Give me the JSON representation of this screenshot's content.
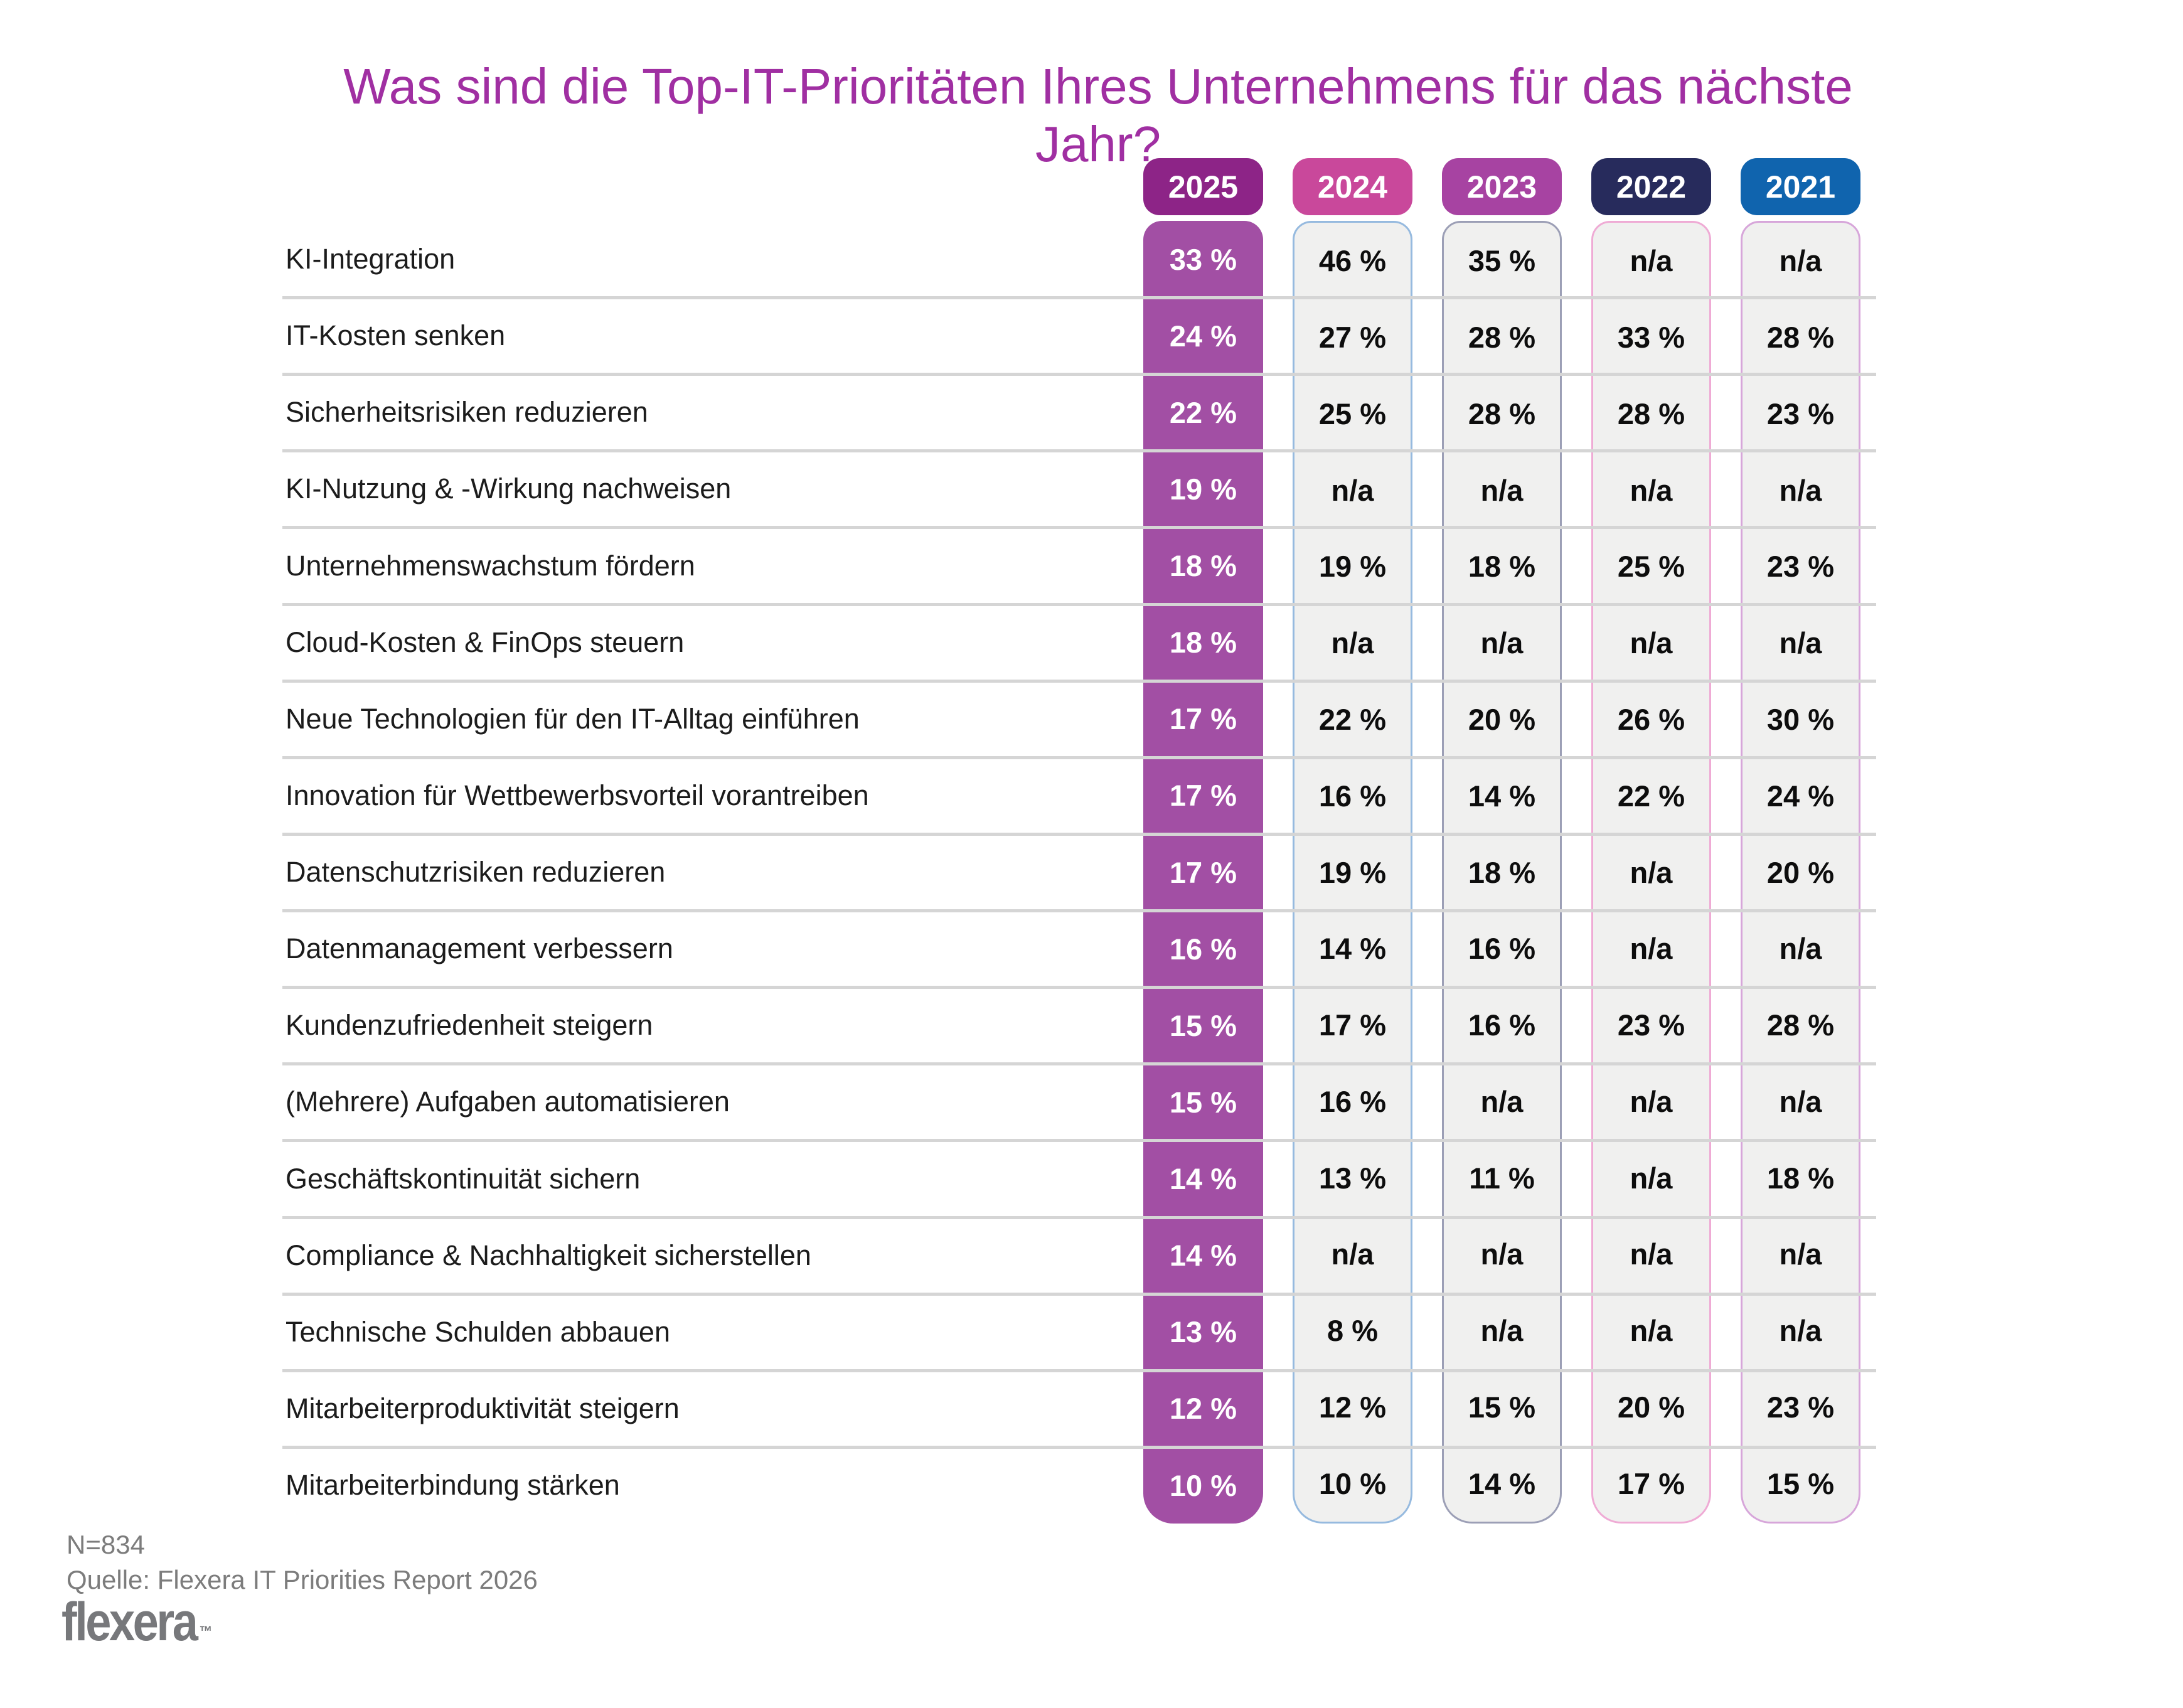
{
  "title": "Was sind die Top-IT-Prioritäten Ihres Unternehmens für das nächste Jahr?",
  "palette": {
    "title_color": "#A02FA2",
    "separator": "#D5D5D5",
    "cell_bg": "#F0F0EF",
    "label_text": "#1C1C1C",
    "value_text": "#0D0D0D",
    "primary_value_text": "#FFFFFF",
    "footer_text": "#7C7C7C",
    "logo_color": "#77787B"
  },
  "years": [
    {
      "label": "2025",
      "header_bg": "#8D2487",
      "body_bg": "#A24FA4",
      "highlight": true
    },
    {
      "label": "2024",
      "header_bg": "#C9489B",
      "border": "#96BADF",
      "highlight": false
    },
    {
      "label": "2023",
      "header_bg": "#A743A2",
      "border": "#9C9FB6",
      "highlight": false
    },
    {
      "label": "2022",
      "header_bg": "#272B5C",
      "border": "#EFABD5",
      "highlight": false
    },
    {
      "label": "2021",
      "header_bg": "#1064AE",
      "border": "#D7A6DA",
      "highlight": false
    }
  ],
  "rows": [
    {
      "label": "KI-Integration",
      "values": [
        "33 %",
        "46 %",
        "35 %",
        "n/a",
        "n/a"
      ]
    },
    {
      "label": "IT-Kosten senken",
      "values": [
        "24 %",
        "27 %",
        "28 %",
        "33 %",
        "28 %"
      ]
    },
    {
      "label": "Sicherheitsrisiken reduzieren",
      "values": [
        "22 %",
        "25 %",
        "28 %",
        "28 %",
        "23 %"
      ]
    },
    {
      "label": "KI-Nutzung & -Wirkung nachweisen",
      "values": [
        "19 %",
        "n/a",
        "n/a",
        "n/a",
        "n/a"
      ]
    },
    {
      "label": "Unternehmenswachstum fördern",
      "values": [
        "18 %",
        "19 %",
        "18 %",
        "25 %",
        "23 %"
      ]
    },
    {
      "label": "Cloud-Kosten & FinOps steuern",
      "values": [
        "18 %",
        "n/a",
        "n/a",
        "n/a",
        "n/a"
      ]
    },
    {
      "label": "Neue Technologien für den IT-Alltag einführen",
      "values": [
        "17 %",
        "22 %",
        "20 %",
        "26 %",
        "30 %"
      ]
    },
    {
      "label": "Innovation für Wettbewerbsvorteil vorantreiben",
      "values": [
        "17 %",
        "16 %",
        "14 %",
        "22 %",
        "24 %"
      ]
    },
    {
      "label": "Datenschutzrisiken reduzieren",
      "values": [
        "17 %",
        "19 %",
        "18 %",
        "n/a",
        "20 %"
      ]
    },
    {
      "label": "Datenmanagement verbessern",
      "values": [
        "16 %",
        "14 %",
        "16 %",
        "n/a",
        "n/a"
      ]
    },
    {
      "label": "Kundenzufriedenheit steigern",
      "values": [
        "15 %",
        "17 %",
        "16 %",
        "23 %",
        "28 %"
      ]
    },
    {
      "label": "(Mehrere) Aufgaben automatisieren",
      "values": [
        "15 %",
        "16 %",
        "n/a",
        "n/a",
        "n/a"
      ]
    },
    {
      "label": "Geschäftskontinuität sichern",
      "values": [
        "14 %",
        "13 %",
        "11 %",
        "n/a",
        "18 %"
      ]
    },
    {
      "label": "Compliance & Nachhaltigkeit sicherstellen",
      "values": [
        "14 %",
        "n/a",
        "n/a",
        "n/a",
        "n/a"
      ]
    },
    {
      "label": "Technische Schulden abbauen",
      "values": [
        "13 %",
        "8 %",
        "n/a",
        "n/a",
        "n/a"
      ]
    },
    {
      "label": "Mitarbeiterproduktivität steigern",
      "values": [
        "12 %",
        "12 %",
        "15 %",
        "20 %",
        "23 %"
      ]
    },
    {
      "label": "Mitarbeiterbindung stärken",
      "values": [
        "10 %",
        "10 %",
        "14 %",
        "17 %",
        "15 %"
      ]
    }
  ],
  "footer": {
    "n": "N=834",
    "source": "Quelle: Flexera IT Priorities Report 2026",
    "logo": "flexera",
    "logo_tm": "™"
  },
  "chart_data": {
    "type": "table",
    "title": "Was sind die Top-IT-Prioritäten Ihres Unternehmens für das nächste Jahr?",
    "columns": [
      "2025",
      "2024",
      "2023",
      "2022",
      "2021"
    ],
    "categories": [
      "KI-Integration",
      "IT-Kosten senken",
      "Sicherheitsrisiken reduzieren",
      "KI-Nutzung & -Wirkung nachweisen",
      "Unternehmenswachstum fördern",
      "Cloud-Kosten & FinOps steuern",
      "Neue Technologien für den IT-Alltag einführen",
      "Innovation für Wettbewerbsvorteil vorantreiben",
      "Datenschutzrisiken reduzieren",
      "Datenmanagement verbessern",
      "Kundenzufriedenheit steigern",
      "(Mehrere) Aufgaben automatisieren",
      "Geschäftskontinuität sichern",
      "Compliance & Nachhaltigkeit sicherstellen",
      "Technische Schulden abbauen",
      "Mitarbeiterproduktivität steigern",
      "Mitarbeiterbindung stärken"
    ],
    "series": [
      {
        "name": "2025",
        "values": [
          33,
          24,
          22,
          19,
          18,
          18,
          17,
          17,
          17,
          16,
          15,
          15,
          14,
          14,
          13,
          12,
          10
        ]
      },
      {
        "name": "2024",
        "values": [
          46,
          27,
          25,
          null,
          19,
          null,
          22,
          16,
          19,
          14,
          17,
          16,
          13,
          null,
          8,
          12,
          10
        ]
      },
      {
        "name": "2023",
        "values": [
          35,
          28,
          28,
          null,
          18,
          null,
          20,
          14,
          18,
          16,
          16,
          null,
          11,
          null,
          null,
          15,
          14
        ]
      },
      {
        "name": "2022",
        "values": [
          null,
          33,
          28,
          null,
          25,
          null,
          26,
          22,
          null,
          null,
          23,
          null,
          null,
          null,
          null,
          20,
          17
        ]
      },
      {
        "name": "2021",
        "values": [
          null,
          28,
          23,
          null,
          23,
          null,
          30,
          24,
          20,
          null,
          28,
          null,
          18,
          null,
          null,
          23,
          15
        ]
      }
    ],
    "unit": "%",
    "na_label": "n/a",
    "sample_size": "N=834",
    "source": "Quelle: Flexera IT Priorities Report 2026"
  }
}
